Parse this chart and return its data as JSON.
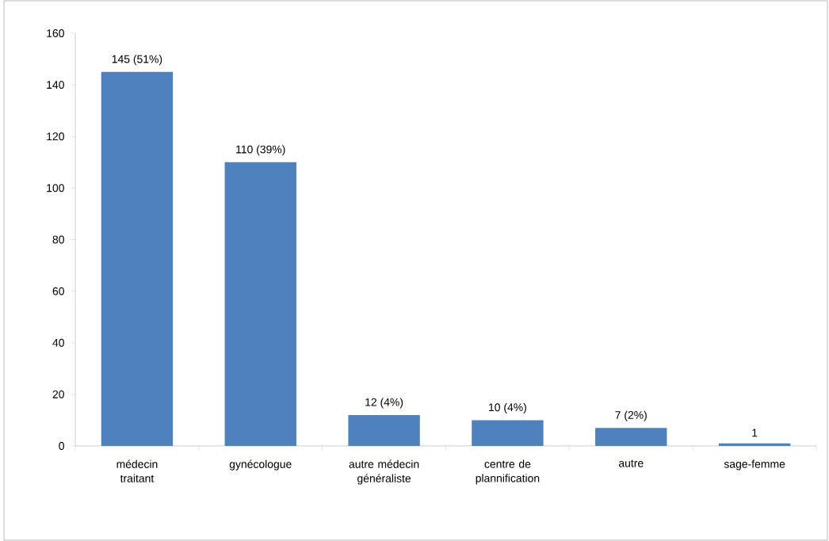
{
  "chart_data": {
    "type": "bar",
    "categories": [
      "médecin traitant",
      "gynécologue",
      "autre médecin généraliste",
      "centre de plannification",
      "autre",
      "sage-femme"
    ],
    "values": [
      145,
      110,
      12,
      10,
      7,
      1
    ],
    "value_labels": [
      "145  (51%)",
      "110 (39%)",
      "12 (4%)",
      "10 (4%)",
      "7 (2%)",
      "1"
    ],
    "color": "#4f81bd",
    "ylim": [
      0,
      160
    ],
    "yticks": [
      0,
      20,
      40,
      60,
      80,
      100,
      120,
      140,
      160
    ],
    "grid": false
  }
}
